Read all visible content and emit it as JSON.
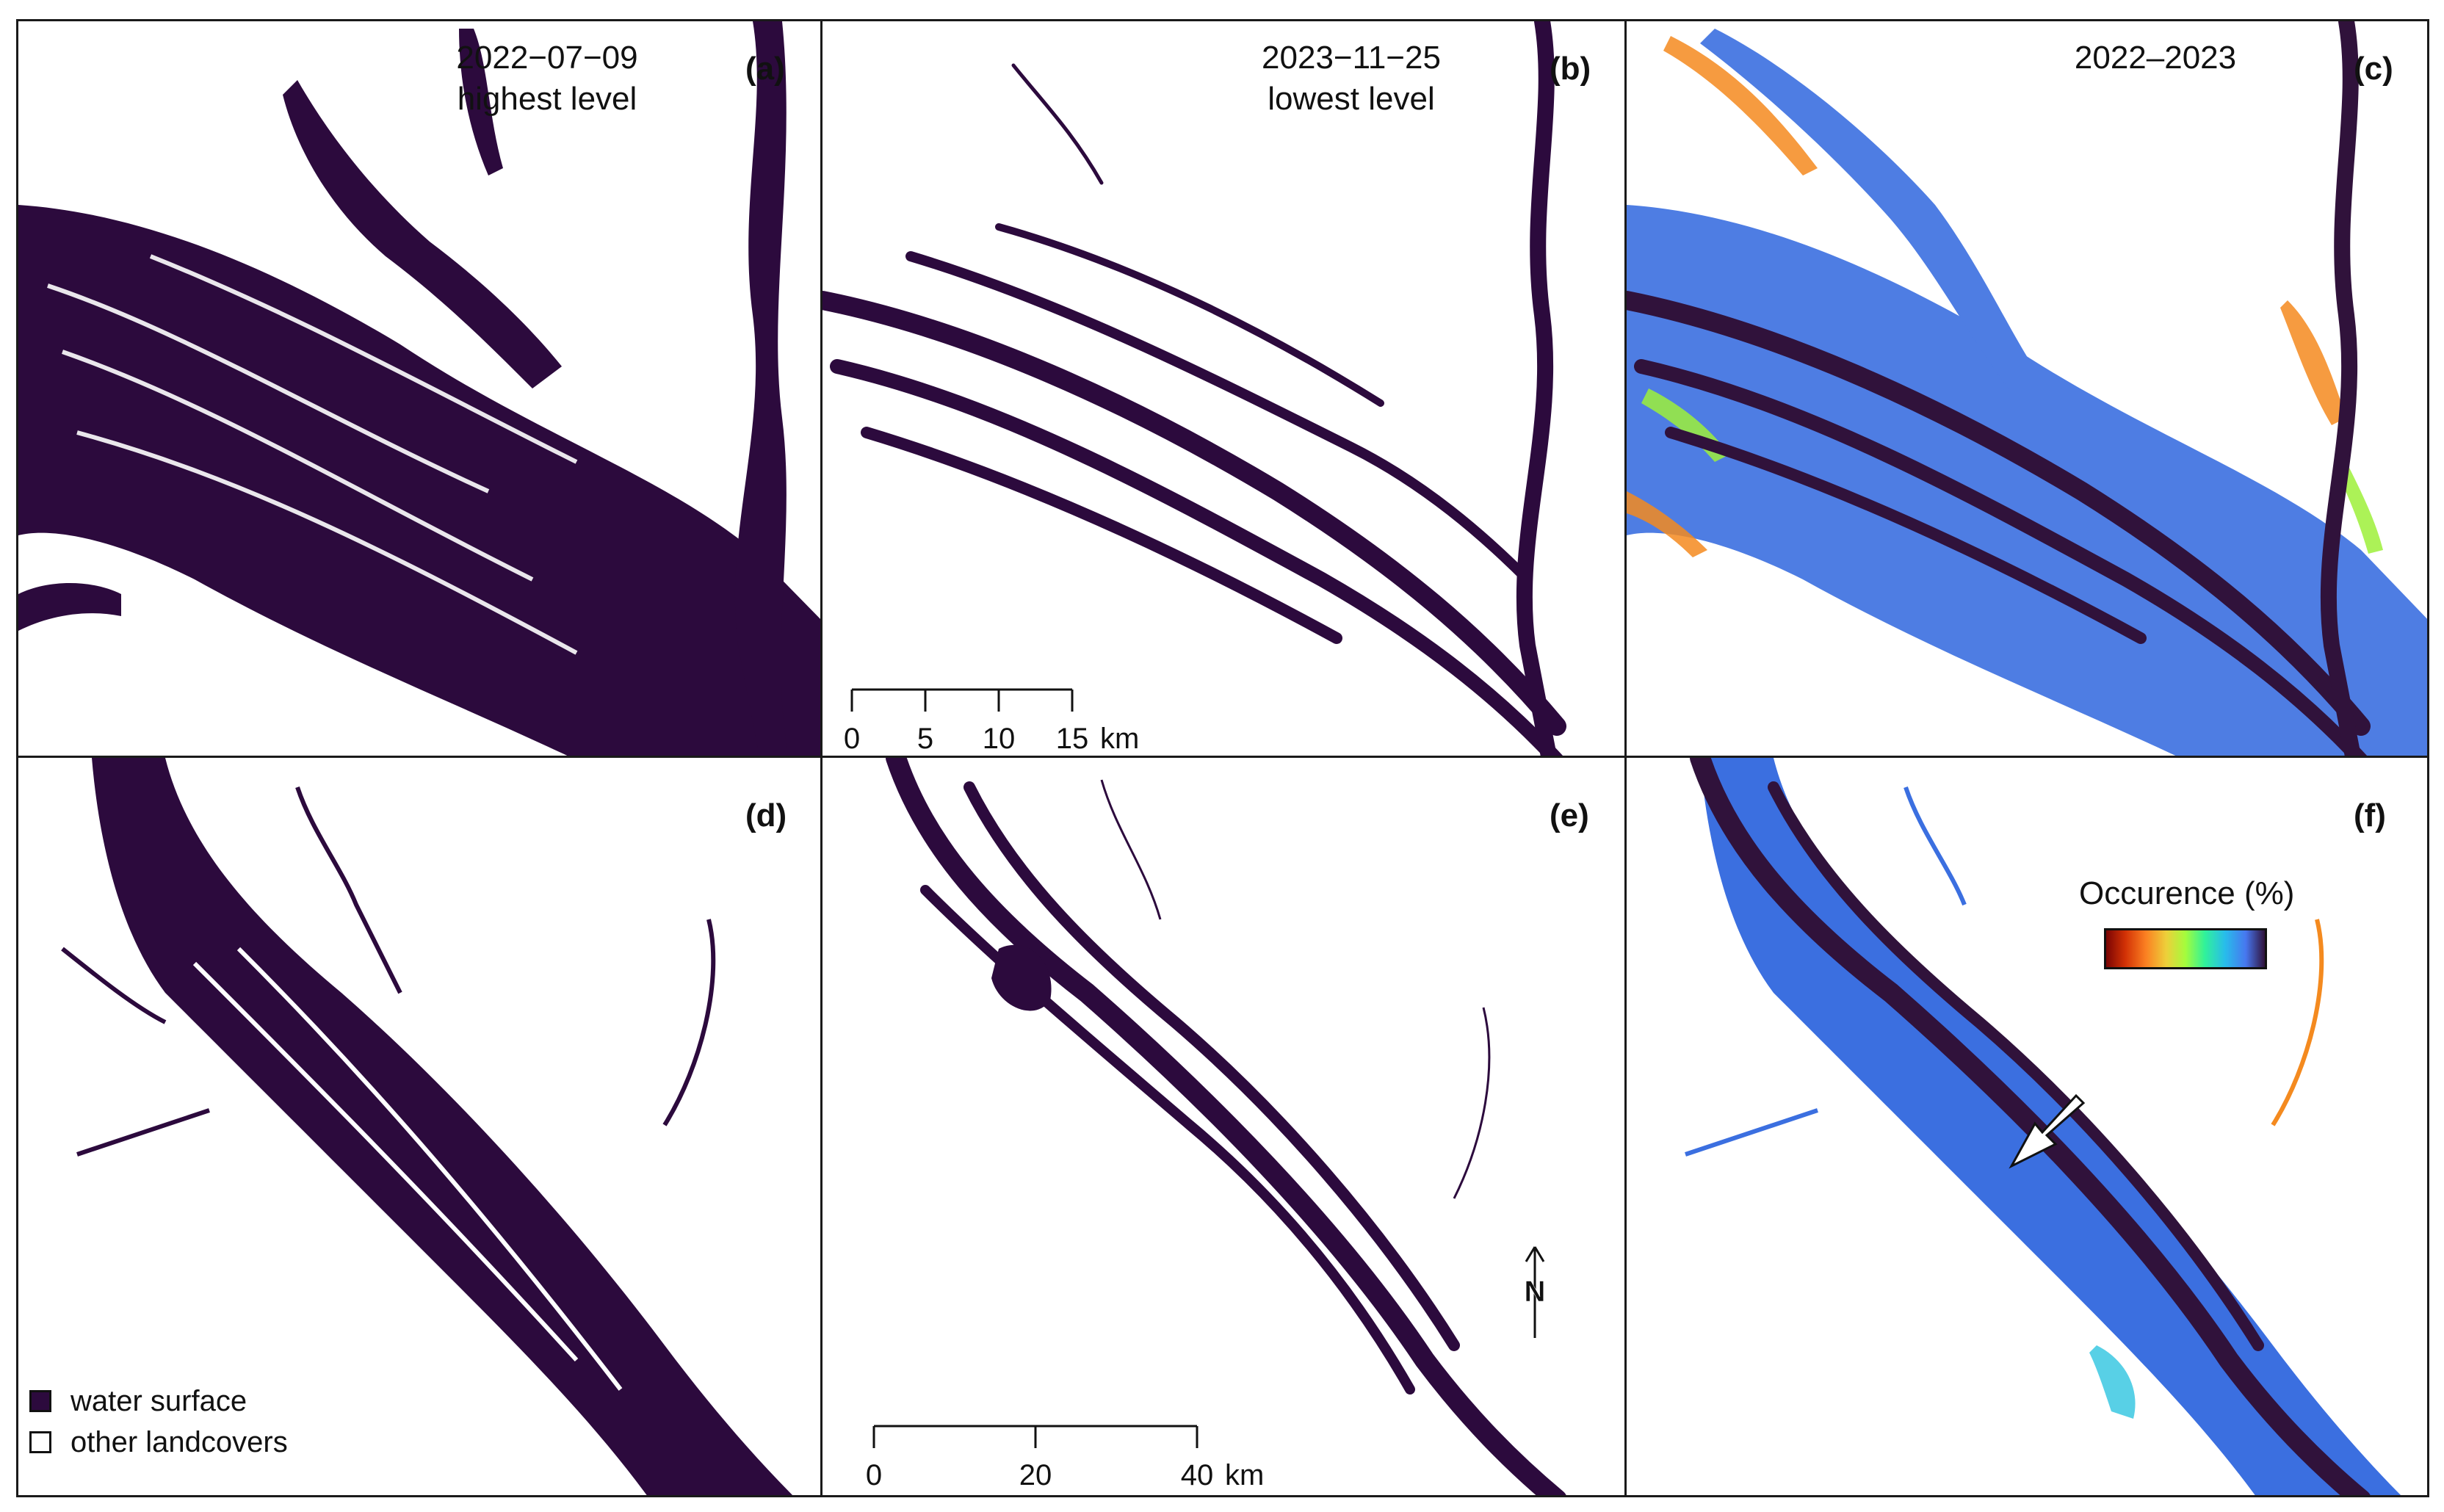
{
  "panels": [
    {
      "id": "a",
      "label": "(a)",
      "title_line1": "2022−07−09",
      "title_line2": "highest level"
    },
    {
      "id": "b",
      "label": "(b)",
      "title_line1": "2023−11−25",
      "title_line2": "lowest level"
    },
    {
      "id": "c",
      "label": "(c)",
      "title_line1": "2022–2023",
      "title_line2": ""
    },
    {
      "id": "d",
      "label": "(d)"
    },
    {
      "id": "e",
      "label": "(e)"
    },
    {
      "id": "f",
      "label": "(f)"
    }
  ],
  "scalebar_top": {
    "ticks": [
      "0",
      "5",
      "10",
      "15"
    ],
    "unit": "km"
  },
  "scalebar_bottom": {
    "ticks": [
      "0",
      "20",
      "40"
    ],
    "unit": "km"
  },
  "north_arrow": {
    "label": "N"
  },
  "legend": {
    "water_label": "water surface",
    "other_label": "other landcovers"
  },
  "colorbar": {
    "title": "Occurence (%)"
  },
  "colors": {
    "water": "#2c0a3d",
    "occurrence_high": "#30123b",
    "occurrence_mid_blue": "#3b6fe0",
    "occurrence_low": "#7a0403",
    "frame": "#1a1a1a"
  }
}
